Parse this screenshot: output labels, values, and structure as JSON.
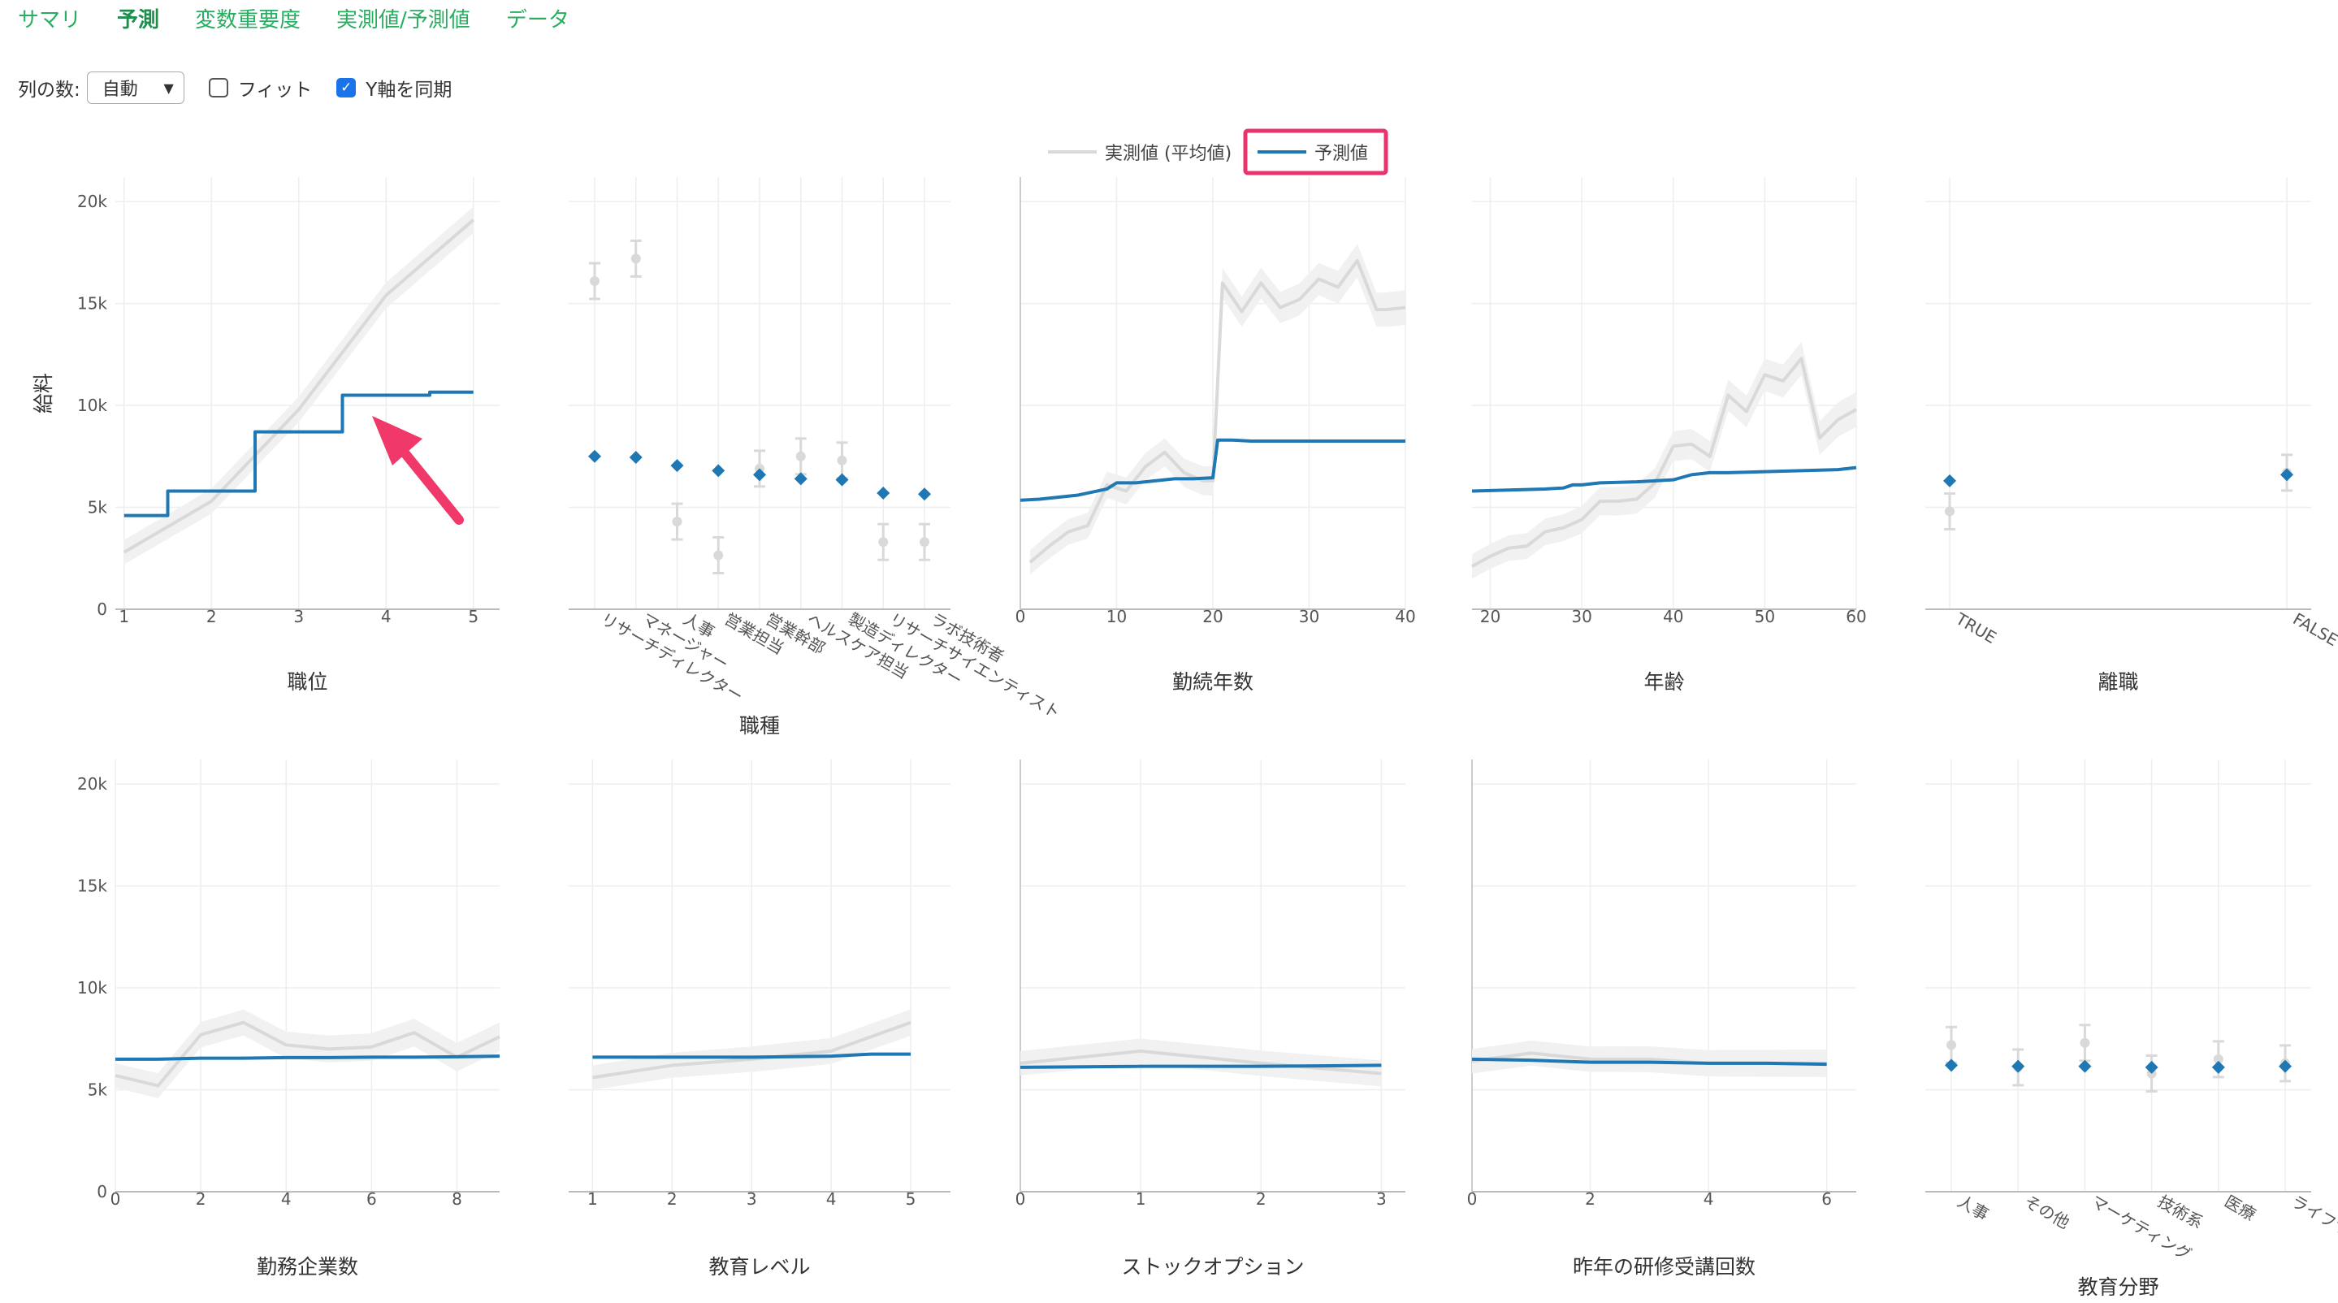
{
  "tabs": [
    {
      "label": "サマリ",
      "active": false
    },
    {
      "label": "予測",
      "active": true
    },
    {
      "label": "変数重要度",
      "active": false
    },
    {
      "label": "実測値/予測値",
      "active": false
    },
    {
      "label": "データ",
      "active": false
    }
  ],
  "controls": {
    "columns_label": "列の数:",
    "columns_value": "自動",
    "fit_label": "フィット",
    "fit_checked": false,
    "sync_label": "Y軸を同期",
    "sync_checked": true
  },
  "legend": {
    "actual": "実測値 (平均値)",
    "predicted": "予測値",
    "highlight_color": "#e8336d"
  },
  "colors": {
    "predicted": "#1f77b4",
    "actual": "#d9d9d9",
    "band": "#f1f1f1",
    "tab": "#27ae60",
    "arrow": "#f0386b"
  },
  "y_axis": {
    "title": "給料",
    "ticks": [
      "0",
      "5k",
      "10k",
      "15k",
      "20k"
    ],
    "values": [
      0,
      5000,
      10000,
      15000,
      20000
    ],
    "range": [
      0,
      21200
    ]
  },
  "chart_data": [
    {
      "type": "line",
      "xlabel": "職位",
      "x": [
        1,
        1.5,
        1.5,
        2.5,
        2.5,
        3.5,
        3.5,
        4.5,
        4.5,
        5
      ],
      "xlim": [
        0.9,
        5.3
      ],
      "xticks": [
        1,
        2,
        3,
        4,
        5
      ],
      "series": [
        {
          "name": "予測値",
          "values": [
            4600,
            4600,
            5800,
            5800,
            8700,
            8700,
            10500,
            10500,
            10650,
            10650
          ]
        },
        {
          "name": "実測値 (平均値)",
          "x": [
            1,
            2,
            3,
            4,
            5
          ],
          "values": [
            2800,
            5300,
            9800,
            15400,
            19100
          ]
        }
      ]
    },
    {
      "type": "scatter",
      "xlabel": "職種",
      "categories": [
        "リサーチディレクター",
        "マネージャー",
        "人事",
        "営業担当",
        "営業幹部",
        "ヘルスケア担当",
        "製造ディレクター",
        "リサーチサイエンティスト",
        "ラボ技術者"
      ],
      "series": [
        {
          "name": "予測値",
          "values": [
            7500,
            7450,
            7050,
            6800,
            6600,
            6400,
            6350,
            5700,
            5650
          ]
        },
        {
          "name": "実測値 (平均値)",
          "values": [
            16100,
            17200,
            4300,
            2650,
            6900,
            7500,
            7300,
            3300,
            3300
          ]
        }
      ]
    },
    {
      "type": "line",
      "xlabel": "勤続年数",
      "xlim": [
        0,
        40
      ],
      "xticks": [
        0,
        10,
        20,
        30,
        40
      ],
      "series": [
        {
          "name": "予測値",
          "x": [
            0,
            2,
            4,
            6,
            8,
            9,
            10,
            12,
            14,
            16,
            18,
            20,
            20.5,
            22,
            24,
            26,
            30,
            35,
            40
          ],
          "values": [
            5350,
            5400,
            5500,
            5600,
            5800,
            5900,
            6200,
            6200,
            6300,
            6400,
            6400,
            6450,
            8300,
            8300,
            8250,
            8250,
            8250,
            8250,
            8250
          ]
        },
        {
          "name": "実測値 (平均値)",
          "x": [
            1,
            3,
            5,
            7,
            9,
            11,
            13,
            15,
            17,
            19,
            20,
            21,
            23,
            25,
            27,
            29,
            31,
            33,
            35,
            37,
            38,
            40
          ],
          "values": [
            2300,
            3100,
            3800,
            4100,
            6100,
            5800,
            7000,
            7700,
            6700,
            6300,
            6300,
            16000,
            14600,
            16000,
            14800,
            15200,
            16200,
            15800,
            17100,
            14700,
            14700,
            14800
          ]
        }
      ]
    },
    {
      "type": "line",
      "xlabel": "年齢",
      "xlim": [
        18,
        60
      ],
      "xticks": [
        20,
        30,
        40,
        50,
        60
      ],
      "series": [
        {
          "name": "予測値",
          "x": [
            18,
            22,
            26,
            28,
            29,
            30,
            32,
            36,
            38,
            40,
            42,
            44,
            46,
            50,
            54,
            58,
            60
          ],
          "values": [
            5800,
            5850,
            5900,
            5950,
            6100,
            6100,
            6200,
            6250,
            6300,
            6350,
            6600,
            6700,
            6700,
            6750,
            6800,
            6850,
            6950
          ]
        },
        {
          "name": "実測値 (平均値)",
          "x": [
            18,
            20,
            22,
            24,
            26,
            28,
            30,
            32,
            34,
            36,
            38,
            40,
            42,
            44,
            46,
            48,
            50,
            52,
            54,
            56,
            58,
            60
          ],
          "values": [
            2100,
            2600,
            3000,
            3100,
            3800,
            4000,
            4400,
            5300,
            5300,
            5400,
            6200,
            8000,
            8100,
            7500,
            10500,
            9700,
            11500,
            11200,
            12300,
            8400,
            9300,
            9800
          ]
        }
      ]
    },
    {
      "type": "scatter",
      "xlabel": "離職",
      "categories": [
        "TRUE",
        "FALSE"
      ],
      "series": [
        {
          "name": "予測値",
          "values": [
            6300,
            6600
          ]
        },
        {
          "name": "実測値 (平均値)",
          "values": [
            4800,
            6700
          ]
        }
      ]
    },
    {
      "type": "line",
      "xlabel": "勤務企業数",
      "xlim": [
        0,
        9
      ],
      "xticks": [
        0,
        2,
        4,
        6,
        8
      ],
      "series": [
        {
          "name": "予測値",
          "x": [
            0,
            1,
            2,
            3,
            4,
            5,
            6,
            7,
            8,
            9
          ],
          "values": [
            6500,
            6500,
            6550,
            6550,
            6580,
            6580,
            6600,
            6600,
            6620,
            6650
          ]
        },
        {
          "name": "実測値 (平均値)",
          "x": [
            0,
            1,
            2,
            3,
            4,
            5,
            6,
            7,
            8,
            9
          ],
          "values": [
            5700,
            5200,
            7700,
            8300,
            7200,
            7000,
            7100,
            7800,
            6600,
            7600
          ]
        }
      ]
    },
    {
      "type": "line",
      "xlabel": "教育レベル",
      "xlim": [
        0.7,
        5.5
      ],
      "xticks": [
        1,
        2,
        3,
        4,
        5
      ],
      "series": [
        {
          "name": "予測値",
          "x": [
            1,
            2,
            3,
            4,
            4.5,
            5
          ],
          "values": [
            6600,
            6600,
            6600,
            6650,
            6750,
            6750
          ]
        },
        {
          "name": "実測値 (平均値)",
          "x": [
            1,
            2,
            3,
            4,
            5
          ],
          "values": [
            5600,
            6200,
            6500,
            6900,
            8300
          ]
        }
      ]
    },
    {
      "type": "line",
      "xlabel": "ストックオプション",
      "xlim": [
        0,
        3.2
      ],
      "xticks": [
        0,
        1,
        2,
        3
      ],
      "series": [
        {
          "name": "予測値",
          "x": [
            0,
            1,
            2,
            3
          ],
          "values": [
            6100,
            6150,
            6150,
            6200
          ]
        },
        {
          "name": "実測値 (平均値)",
          "x": [
            0,
            1,
            2,
            3
          ],
          "values": [
            6300,
            6900,
            6300,
            5800
          ]
        }
      ]
    },
    {
      "type": "line",
      "xlabel": "昨年の研修受講回数",
      "xlim": [
        0,
        6.5
      ],
      "xticks": [
        0,
        2,
        4,
        6
      ],
      "series": [
        {
          "name": "予測値",
          "x": [
            0,
            1,
            2,
            3,
            4,
            5,
            6
          ],
          "values": [
            6500,
            6450,
            6350,
            6350,
            6300,
            6300,
            6250
          ]
        },
        {
          "name": "実測値 (平均値)",
          "x": [
            0,
            1,
            2,
            3,
            4,
            5,
            6
          ],
          "values": [
            6400,
            6800,
            6500,
            6500,
            6300,
            6300,
            6300
          ]
        }
      ]
    },
    {
      "type": "scatter",
      "xlabel": "教育分野",
      "categories": [
        "人事",
        "その他",
        "マーケティング",
        "技術系",
        "医療",
        "ライフサイエンス"
      ],
      "series": [
        {
          "name": "予測値",
          "values": [
            6200,
            6150,
            6150,
            6100,
            6100,
            6150
          ]
        },
        {
          "name": "実測値 (平均値)",
          "values": [
            7200,
            6100,
            7300,
            5800,
            6500,
            6300
          ]
        }
      ]
    }
  ]
}
